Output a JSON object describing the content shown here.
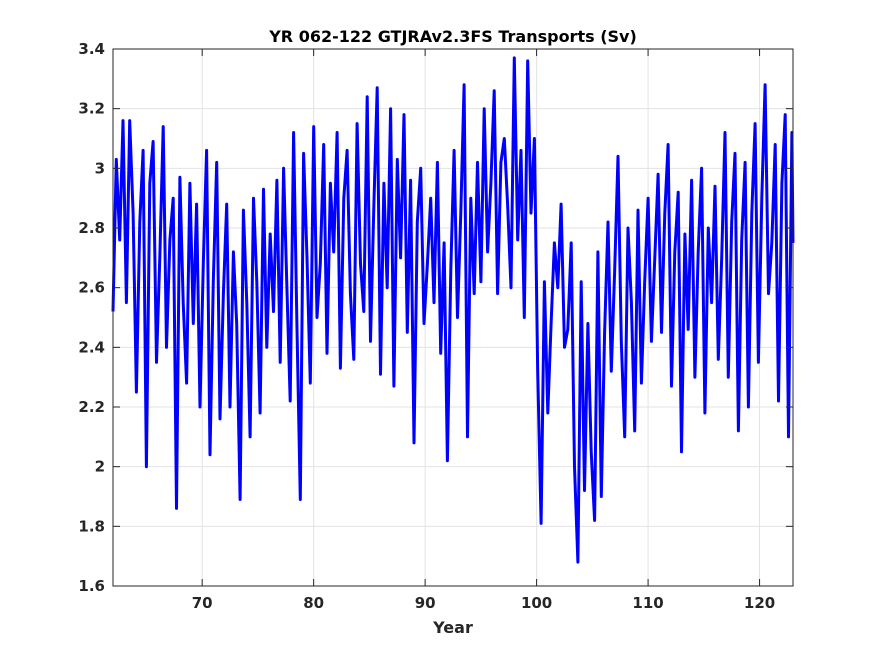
{
  "chart_data": {
    "type": "line",
    "title": "YR 062-122 GTJRAv2.3FS Transports (Sv)",
    "xlabel": "Year",
    "ylabel": "",
    "xlim": [
      62,
      123
    ],
    "ylim": [
      1.6,
      3.4
    ],
    "xticks": [
      70,
      80,
      90,
      100,
      110,
      120
    ],
    "xtick_labels": [
      "70",
      "80",
      "90",
      "100",
      "110",
      "120"
    ],
    "yticks": [
      1.6,
      1.8,
      2.0,
      2.2,
      2.4,
      2.6,
      2.8,
      3.0,
      3.2,
      3.4
    ],
    "ytick_labels": [
      "1.6",
      "1.8",
      "2",
      "2.2",
      "2.4",
      "2.6",
      "2.8",
      "3",
      "3.2",
      "3.4"
    ],
    "grid": true,
    "series": [
      {
        "color": "#0000ff",
        "x": [
          62.0,
          62.3,
          62.6,
          62.9,
          63.2,
          63.5,
          63.8,
          64.1,
          64.4,
          64.7,
          65.0,
          65.3,
          65.6,
          65.9,
          66.2,
          66.5,
          66.8,
          67.1,
          67.4,
          67.7,
          68.0,
          68.3,
          68.6,
          68.9,
          69.2,
          69.5,
          69.8,
          70.1,
          70.4,
          70.7,
          71.0,
          71.3,
          71.6,
          71.9,
          72.2,
          72.5,
          72.8,
          73.1,
          73.4,
          73.7,
          74.0,
          74.3,
          74.6,
          74.9,
          75.2,
          75.5,
          75.8,
          76.1,
          76.4,
          76.7,
          77.0,
          77.3,
          77.6,
          77.9,
          78.2,
          78.5,
          78.8,
          79.1,
          79.4,
          79.7,
          80.0,
          80.3,
          80.6,
          80.9,
          81.2,
          81.5,
          81.8,
          82.1,
          82.4,
          82.7,
          83.0,
          83.3,
          83.6,
          83.9,
          84.2,
          84.5,
          84.8,
          85.1,
          85.4,
          85.7,
          86.0,
          86.3,
          86.6,
          86.9,
          87.2,
          87.5,
          87.8,
          88.1,
          88.4,
          88.7,
          89.0,
          89.3,
          89.6,
          89.9,
          90.2,
          90.5,
          90.8,
          91.1,
          91.4,
          91.7,
          92.0,
          92.3,
          92.6,
          92.9,
          93.2,
          93.5,
          93.8,
          94.1,
          94.4,
          94.7,
          95.0,
          95.3,
          95.6,
          95.9,
          96.2,
          96.5,
          96.8,
          97.1,
          97.4,
          97.7,
          98.0,
          98.3,
          98.6,
          98.9,
          99.2,
          99.5,
          99.8,
          100.1,
          100.4,
          100.7,
          101.0,
          101.3,
          101.6,
          101.9,
          102.2,
          102.5,
          102.8,
          103.1,
          103.4,
          103.7,
          104.0,
          104.3,
          104.6,
          104.9,
          105.2,
          105.5,
          105.8,
          106.1,
          106.4,
          106.7,
          107.0,
          107.3,
          107.6,
          107.9,
          108.2,
          108.5,
          108.8,
          109.1,
          109.4,
          109.7,
          110.0,
          110.3,
          110.6,
          110.9,
          111.2,
          111.5,
          111.8,
          112.1,
          112.4,
          112.7,
          113.0,
          113.3,
          113.6,
          113.9,
          114.2,
          114.5,
          114.8,
          115.1,
          115.4,
          115.7,
          116.0,
          116.3,
          116.6,
          116.9,
          117.2,
          117.5,
          117.8,
          118.1,
          118.4,
          118.7,
          119.0,
          119.3,
          119.6,
          119.9,
          120.2,
          120.5,
          120.8,
          121.1,
          121.4,
          121.7,
          122.0,
          122.3,
          122.6,
          122.9,
          123.0
        ],
        "y": [
          2.52,
          3.03,
          2.76,
          3.16,
          2.55,
          3.16,
          2.85,
          2.25,
          2.82,
          3.06,
          2.0,
          2.95,
          3.09,
          2.35,
          2.7,
          3.14,
          2.4,
          2.76,
          2.9,
          1.86,
          2.97,
          2.55,
          2.28,
          2.95,
          2.48,
          2.88,
          2.2,
          2.68,
          3.06,
          2.04,
          2.62,
          3.02,
          2.16,
          2.58,
          2.88,
          2.2,
          2.72,
          2.48,
          1.89,
          2.86,
          2.55,
          2.1,
          2.9,
          2.62,
          2.18,
          2.93,
          2.4,
          2.78,
          2.52,
          2.96,
          2.35,
          3.0,
          2.6,
          2.22,
          3.12,
          2.48,
          1.89,
          3.05,
          2.7,
          2.28,
          3.14,
          2.5,
          2.68,
          3.08,
          2.38,
          2.95,
          2.72,
          3.12,
          2.33,
          2.9,
          3.06,
          2.58,
          2.36,
          3.15,
          2.68,
          2.52,
          3.24,
          2.42,
          2.88,
          3.27,
          2.31,
          2.95,
          2.6,
          3.2,
          2.27,
          3.03,
          2.7,
          3.18,
          2.45,
          2.96,
          2.08,
          2.82,
          3.0,
          2.48,
          2.68,
          2.9,
          2.55,
          3.02,
          2.38,
          2.75,
          2.02,
          2.66,
          3.06,
          2.5,
          2.85,
          3.28,
          2.1,
          2.9,
          2.58,
          3.02,
          2.62,
          3.2,
          2.72,
          2.95,
          3.26,
          2.58,
          3.02,
          3.1,
          2.88,
          2.6,
          3.37,
          2.76,
          3.06,
          2.5,
          3.36,
          2.85,
          3.1,
          2.32,
          1.81,
          2.62,
          2.18,
          2.48,
          2.75,
          2.6,
          2.88,
          2.4,
          2.46,
          2.75,
          2.0,
          1.68,
          2.62,
          1.92,
          2.48,
          2.05,
          1.82,
          2.72,
          1.9,
          2.45,
          2.82,
          2.32,
          2.65,
          3.04,
          2.42,
          2.1,
          2.8,
          2.55,
          2.12,
          2.86,
          2.28,
          2.62,
          2.9,
          2.42,
          2.7,
          2.98,
          2.45,
          2.85,
          3.08,
          2.27,
          2.72,
          2.92,
          2.05,
          2.78,
          2.46,
          2.96,
          2.3,
          2.72,
          3.0,
          2.18,
          2.8,
          2.55,
          2.94,
          2.36,
          2.7,
          3.12,
          2.3,
          2.82,
          3.05,
          2.12,
          2.76,
          3.02,
          2.2,
          2.85,
          3.15,
          2.35,
          2.9,
          3.28,
          2.58,
          2.75,
          3.08,
          2.22,
          2.95,
          3.18,
          2.1,
          3.12,
          2.75
        ]
      }
    ]
  }
}
